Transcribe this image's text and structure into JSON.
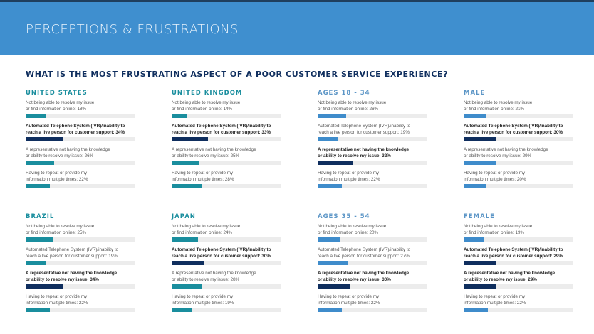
{
  "header": {
    "title": "PERCEPTIONS & FRUSTRATIONS"
  },
  "question": "WHAT IS THE MOST FRUSTRATING ASPECT OF A POOR CUSTOMER SERVICE EXPERIENCE?",
  "colors": {
    "country": "#1a8e9e",
    "demographic": "#3f8ccb",
    "highlight": "#0f2e5e",
    "track": "#ececec",
    "country_heading": "#1a8e9e",
    "demographic_heading": "#5b95c6"
  },
  "panels": [
    {
      "title": "UNITED STATES",
      "kind": "country",
      "items": [
        {
          "label": "Not being able to resolve my issue\nor find information online: 18%",
          "value": 18,
          "highlight": false
        },
        {
          "label": "Automated Telephone System (IVR)/inability to\nreach a live person for customer support: 34%",
          "value": 34,
          "highlight": true
        },
        {
          "label": "A representative not having the knowledge\nor ability to resolve my issue: 26%",
          "value": 26,
          "highlight": false
        },
        {
          "label": "Having to repeat or provide my\ninformation multiple times: 22%",
          "value": 22,
          "highlight": false
        }
      ]
    },
    {
      "title": "UNITED KINGDOM",
      "kind": "country",
      "items": [
        {
          "label": "Not being able to resolve my issue\nor find information online: 14%",
          "value": 14,
          "highlight": false
        },
        {
          "label": "Automated Telephone System (IVR)/inability to\nreach a live person for customer support: 33%",
          "value": 33,
          "highlight": true
        },
        {
          "label": "A representative not having the knowledge\nor ability to resolve my issue: 25%",
          "value": 25,
          "highlight": false
        },
        {
          "label": "Having to repeat or provide my\ninformation multiple times: 28%",
          "value": 28,
          "highlight": false
        }
      ]
    },
    {
      "title": "AGES 18 - 34",
      "kind": "demographic",
      "items": [
        {
          "label": "Not being able to resolve my issue\nor find information online: 26%",
          "value": 26,
          "highlight": false
        },
        {
          "label": "Automated Telephone System (IVR)/inability to\nreach a live person for customer support: 19%",
          "value": 19,
          "highlight": false
        },
        {
          "label": "A representative not having the knowledge\nor ability to resolve my issue: 32%",
          "value": 32,
          "highlight": true
        },
        {
          "label": "Having to repeat or provide my\ninformation multiple times: 22%",
          "value": 22,
          "highlight": false
        }
      ]
    },
    {
      "title": "MALE",
      "kind": "demographic",
      "items": [
        {
          "label": "Not being able to resolve my issue\nor find information online: 21%",
          "value": 21,
          "highlight": false
        },
        {
          "label": "Automated Telephone System (IVR)/inability to\nreach a live person for customer support: 30%",
          "value": 30,
          "highlight": true
        },
        {
          "label": "A representative not having the knowledge\nor ability to resolve my issue: 29%",
          "value": 29,
          "highlight": false
        },
        {
          "label": "Having to repeat or provide my\ninformation multiple times: 20%",
          "value": 20,
          "highlight": false
        }
      ]
    },
    {
      "title": "BRAZIL",
      "kind": "country",
      "items": [
        {
          "label": "Not being able to resolve my issue\nor find information online: 25%",
          "value": 25,
          "highlight": false
        },
        {
          "label": "Automated Telephone System (IVR)/inability to\nreach a live person for customer support: 19%",
          "value": 19,
          "highlight": false
        },
        {
          "label": "A representative not having the knowledge\nor ability to resolve my issue: 34%",
          "value": 34,
          "highlight": true
        },
        {
          "label": "Having to repeat or provide my\ninformation multiple times: 22%",
          "value": 22,
          "highlight": false
        }
      ]
    },
    {
      "title": "JAPAN",
      "kind": "country",
      "items": [
        {
          "label": "Not being able to resolve my issue\nor find information online: 24%",
          "value": 24,
          "highlight": false
        },
        {
          "label": "Automated Telephone System (IVR)/inability to\nreach a live person for customer support: 30%",
          "value": 30,
          "highlight": true
        },
        {
          "label": "A representative not having the knowledge\nor ability to resolve my issue: 28%",
          "value": 28,
          "highlight": false
        },
        {
          "label": "Having to repeat or provide my\ninformation multiple times: 19%",
          "value": 19,
          "highlight": false
        }
      ]
    },
    {
      "title": "AGES 35 - 54",
      "kind": "demographic",
      "items": [
        {
          "label": "Not being able to resolve my issue\nor find information online: 20%",
          "value": 20,
          "highlight": false
        },
        {
          "label": "Automated Telephone System (IVR)/inability to\nreach a live person for customer support: 27%",
          "value": 27,
          "highlight": false
        },
        {
          "label": "A representative not having the knowledge\nor ability to resolve my issue: 30%",
          "value": 30,
          "highlight": true
        },
        {
          "label": "Having to repeat or provide my\ninformation multiple times: 22%",
          "value": 22,
          "highlight": false
        }
      ]
    },
    {
      "title": "FEMALE",
      "kind": "demographic",
      "items": [
        {
          "label": "Not being able to resolve my issue\nor find information online: 19%",
          "value": 19,
          "highlight": false
        },
        {
          "label": "Automated Telephone System (IVR)/inability to\nreach a live person for customer support: 29%",
          "value": 29,
          "highlight": true
        },
        {
          "label": "A representative not having the knowledge\nor ability to resolve my issue: 29%",
          "value": 29,
          "highlight": true
        },
        {
          "label": "Having to repeat or provide my\ninformation multiple times: 22%",
          "value": 22,
          "highlight": false
        }
      ]
    }
  ]
}
